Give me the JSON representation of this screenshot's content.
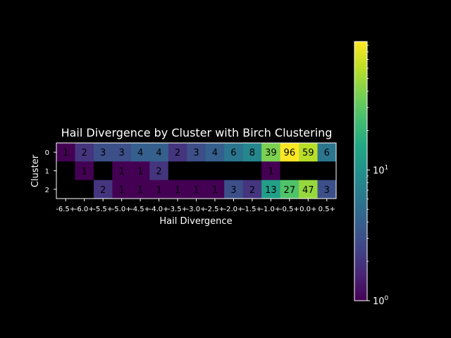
{
  "chart_data": {
    "type": "heatmap",
    "title": "Hail Divergence by Cluster with Birch Clustering",
    "xlabel": "Hail Divergence",
    "ylabel": "Cluster",
    "x_categories": [
      "-6.5+",
      "-6.0+",
      "-5.5+",
      "-5.0+",
      "-4.5+",
      "-4.0+",
      "-3.5+",
      "-3.0+",
      "-2.5+",
      "-2.0+",
      "-1.5+",
      "-1.0+",
      "-0.5+",
      "0.0+",
      "0.5+"
    ],
    "y_categories": [
      "0",
      "1",
      "2"
    ],
    "values": [
      [
        1,
        2,
        3,
        3,
        4,
        4,
        2,
        3,
        4,
        6,
        8,
        39,
        96,
        59,
        6
      ],
      [
        null,
        1,
        null,
        1,
        1,
        2,
        null,
        null,
        null,
        null,
        null,
        1,
        null,
        null,
        null
      ],
      [
        null,
        null,
        2,
        1,
        1,
        1,
        1,
        1,
        1,
        3,
        2,
        13,
        27,
        47,
        3
      ]
    ],
    "color_scale": "log",
    "colormap": "viridis",
    "colorbar": {
      "ticks": [
        {
          "value": 1,
          "base": "10",
          "exp": "0"
        },
        {
          "value": 10,
          "base": "10",
          "exp": "1"
        }
      ],
      "range": [
        1,
        96
      ]
    },
    "background_color": "#000000",
    "missing_color": "#000000"
  }
}
